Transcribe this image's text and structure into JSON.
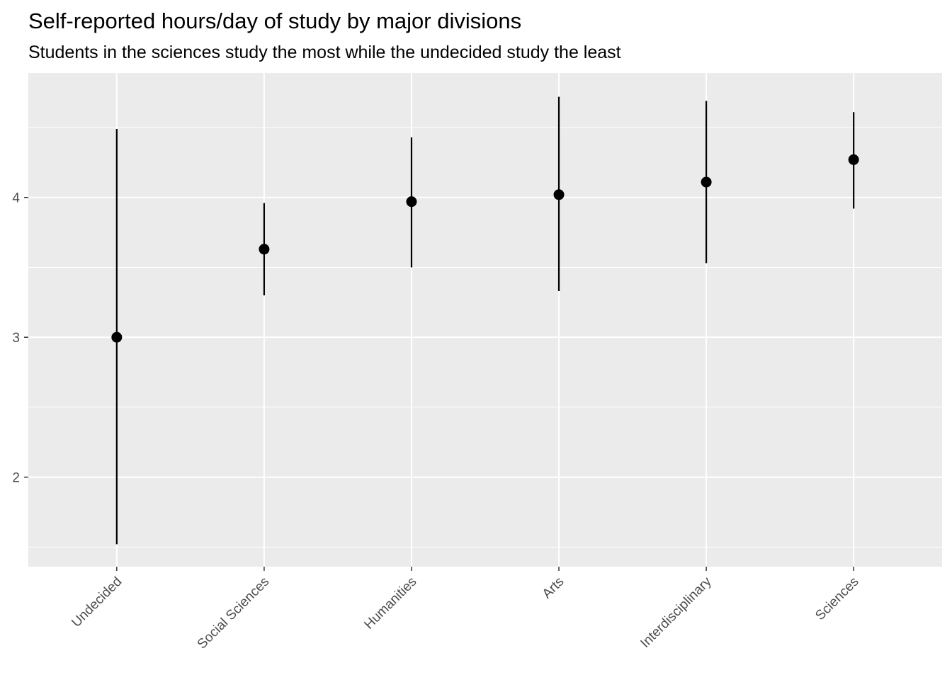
{
  "chart_data": {
    "type": "scatter",
    "title": "Self-reported hours/day of study by major divisions",
    "subtitle": "Students in the sciences study the most while the undecided study the least",
    "xlabel": "",
    "ylabel": "",
    "categories": [
      "Undecided",
      "Social Sciences",
      "Humanities",
      "Arts",
      "Interdisciplinary",
      "Sciences"
    ],
    "means": [
      3.0,
      3.63,
      3.97,
      4.02,
      4.11,
      4.27
    ],
    "lower": [
      1.52,
      3.3,
      3.5,
      3.33,
      3.53,
      3.92
    ],
    "upper": [
      4.49,
      3.96,
      4.43,
      4.72,
      4.69,
      4.61
    ],
    "ylim": [
      1.36,
      4.89
    ],
    "yticks": [
      2,
      3,
      4
    ],
    "grid": true,
    "legend": "none",
    "colors": {
      "panel": "#ebebeb",
      "grid": "#ffffff",
      "marks": "#000000",
      "ticks": "#333333"
    }
  }
}
